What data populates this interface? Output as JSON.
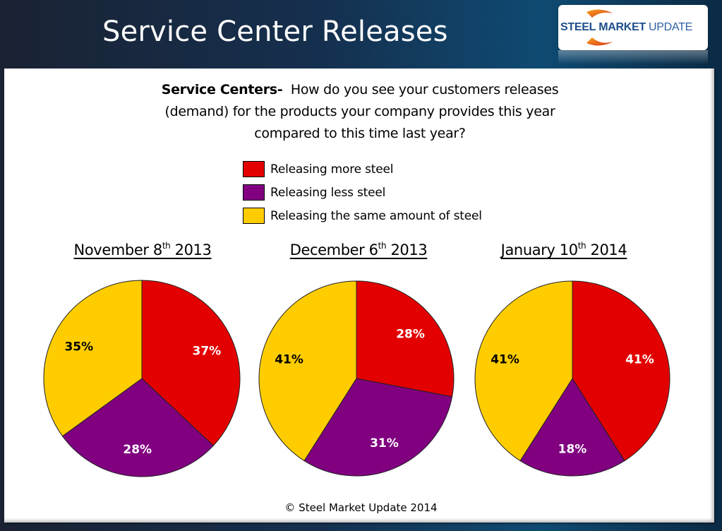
{
  "header": {
    "title": "Service Center Releases",
    "logo": {
      "part1": "STEEL",
      "part2": "MARKET",
      "part3": "UPDATE"
    }
  },
  "question": {
    "lead": "Service Centers-",
    "text": "How do you  see your customers releases (demand) for the products your company provides this year compared to this time last year?"
  },
  "legend": [
    {
      "label": "Releasing more steel",
      "color": "#e30000"
    },
    {
      "label": "Releasing less steel",
      "color": "#800080"
    },
    {
      "label": "Releasing the same amount of steel",
      "color": "#ffcc00"
    }
  ],
  "footer": "© Steel Market Update 2014",
  "chart_data": [
    {
      "type": "pie",
      "title": "November 8th 2013",
      "title_parts": {
        "pre": "November 8",
        "sup": "th",
        "post": " 2013"
      },
      "categories": [
        "Releasing more steel",
        "Releasing less steel",
        "Releasing the same amount of steel"
      ],
      "values": [
        37,
        28,
        35
      ],
      "labels": [
        "37%",
        "28%",
        "35%"
      ],
      "colors": [
        "#e30000",
        "#800080",
        "#ffcc00"
      ],
      "label_colors": [
        "#ffffff",
        "#ffffff",
        "#000000"
      ]
    },
    {
      "type": "pie",
      "title": "December 6th 2013",
      "title_parts": {
        "pre": "December 6",
        "sup": "th",
        "post": " 2013"
      },
      "categories": [
        "Releasing more steel",
        "Releasing less steel",
        "Releasing the same amount of steel"
      ],
      "values": [
        28,
        31,
        41
      ],
      "labels": [
        "28%",
        "31%",
        "41%"
      ],
      "colors": [
        "#e30000",
        "#800080",
        "#ffcc00"
      ],
      "label_colors": [
        "#ffffff",
        "#ffffff",
        "#000000"
      ]
    },
    {
      "type": "pie",
      "title": "January 10th 2014",
      "title_parts": {
        "pre": "January 10",
        "sup": "th",
        "post": " 2014"
      },
      "categories": [
        "Releasing more steel",
        "Releasing less steel",
        "Releasing the same amount of steel"
      ],
      "values": [
        41,
        18,
        41
      ],
      "labels": [
        "41%",
        "18%",
        "41%"
      ],
      "colors": [
        "#e30000",
        "#800080",
        "#ffcc00"
      ],
      "label_colors": [
        "#ffffff",
        "#ffffff",
        "#000000"
      ]
    }
  ]
}
